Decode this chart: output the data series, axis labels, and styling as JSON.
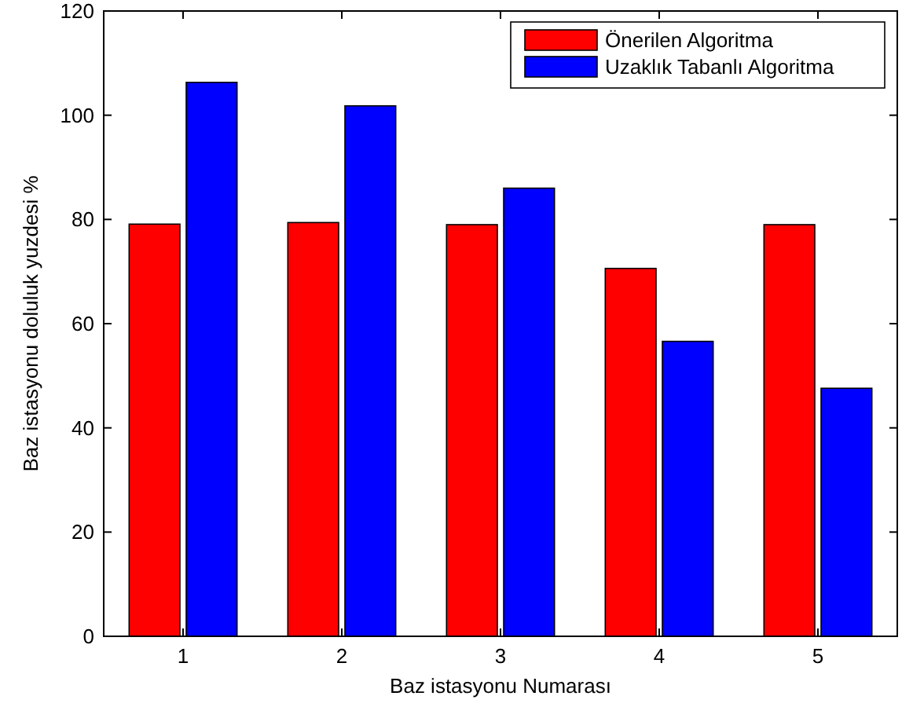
{
  "chart_data": {
    "type": "bar",
    "xlabel": "Baz istasyonu Numarası",
    "ylabel": "Baz istasyonu doluluk yuzdesi %",
    "categories": [
      "1",
      "2",
      "3",
      "4",
      "5"
    ],
    "series": [
      {
        "name": "Önerilen Algoritma",
        "color": "#ff0000",
        "values": [
          79.1,
          79.4,
          79,
          70.6,
          79
        ]
      },
      {
        "name": "Uzaklık Tabanlı Algoritma",
        "color": "#0000ff",
        "values": [
          106.3,
          101.8,
          86,
          56.6,
          47.6
        ]
      }
    ],
    "ylim": [
      0,
      120
    ],
    "yticks": [
      0,
      20,
      40,
      60,
      80,
      100,
      120
    ],
    "grid": false,
    "legend": "top right"
  }
}
